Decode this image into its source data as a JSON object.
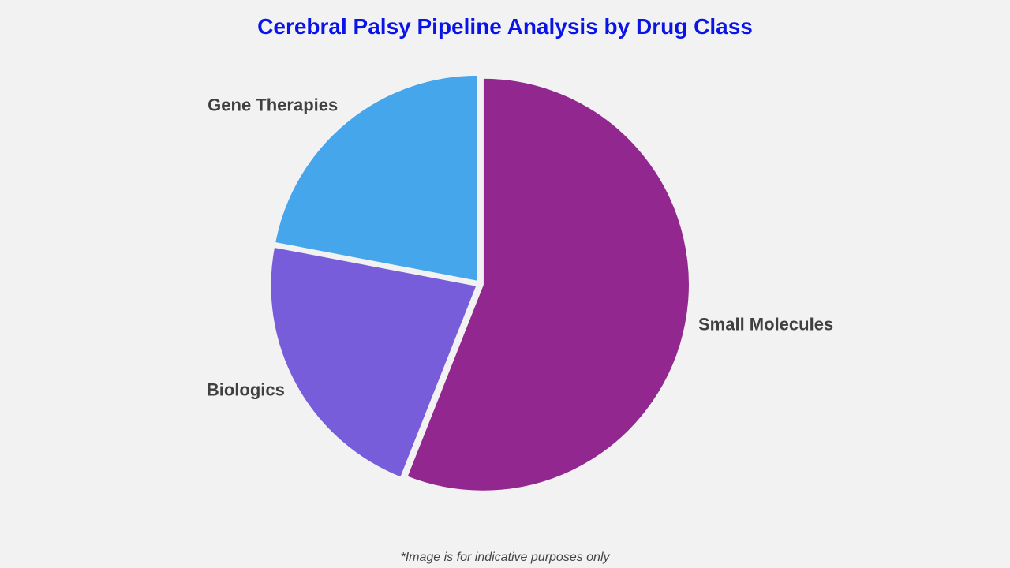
{
  "chart_data": {
    "type": "pie",
    "title": "Cerebral Palsy Pipeline Analysis by Drug Class",
    "categories": [
      "Small Molecules",
      "Biologics",
      "Gene Therapies"
    ],
    "values": [
      56,
      22,
      22
    ],
    "colors": [
      "#92278F",
      "#775DD9",
      "#46A6EC"
    ],
    "start_angle": "top, clockwise",
    "legend": "none (labels outside slices)"
  },
  "footnote": "*Image is for indicative purposes only"
}
